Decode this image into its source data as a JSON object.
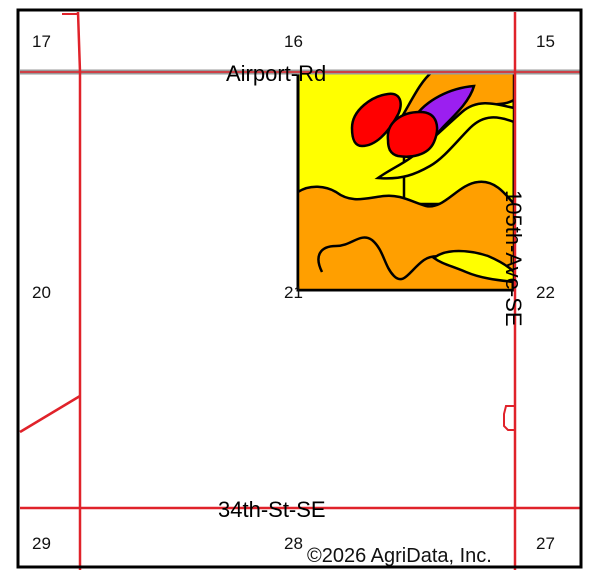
{
  "map": {
    "section_numbers": {
      "s17": "17",
      "s16": "16",
      "s15": "15",
      "s20": "20",
      "s21": "21",
      "s22": "22",
      "s29": "29",
      "s28": "28",
      "s27": "27"
    },
    "roads": {
      "airport": "Airport-Rd",
      "ave105": "105th-Ave-SE",
      "st34": "34th-St-SE"
    },
    "copyright": "©2026 AgriData, Inc.",
    "colors": {
      "road": "#e0222a",
      "highway": "#9a9a9a",
      "soil_yellow": "#ffff00",
      "soil_orange": "#ff9f00",
      "soil_red": "#ff0000",
      "soil_purple": "#9b1ff0",
      "frame": "#000000"
    }
  }
}
